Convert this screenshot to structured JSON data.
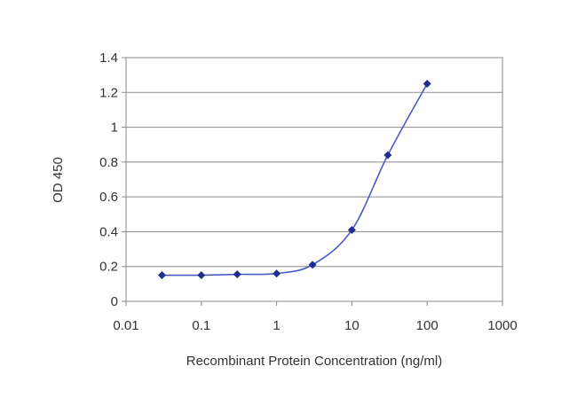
{
  "chart_data": {
    "type": "line",
    "title": "",
    "xlabel": "Recombinant Protein Concentration (ng/ml)",
    "ylabel": "OD 450",
    "xscale": "log",
    "xlim": [
      0.01,
      1000
    ],
    "ylim": [
      0,
      1.4
    ],
    "xticks": [
      "0.01",
      "0.1",
      "1",
      "10",
      "100",
      "1000"
    ],
    "yticks": [
      "0",
      "0.2",
      "0.4",
      "0.6",
      "0.8",
      "1",
      "1.2",
      "1.4"
    ],
    "grid": "horizontal",
    "series": [
      {
        "x": [
          0.03,
          0.1,
          0.3,
          1,
          3,
          10,
          30,
          100
        ],
        "y": [
          0.15,
          0.15,
          0.155,
          0.16,
          0.21,
          0.41,
          0.84,
          1.25
        ],
        "color": "#1f2d8f",
        "marker": "diamond"
      }
    ]
  }
}
